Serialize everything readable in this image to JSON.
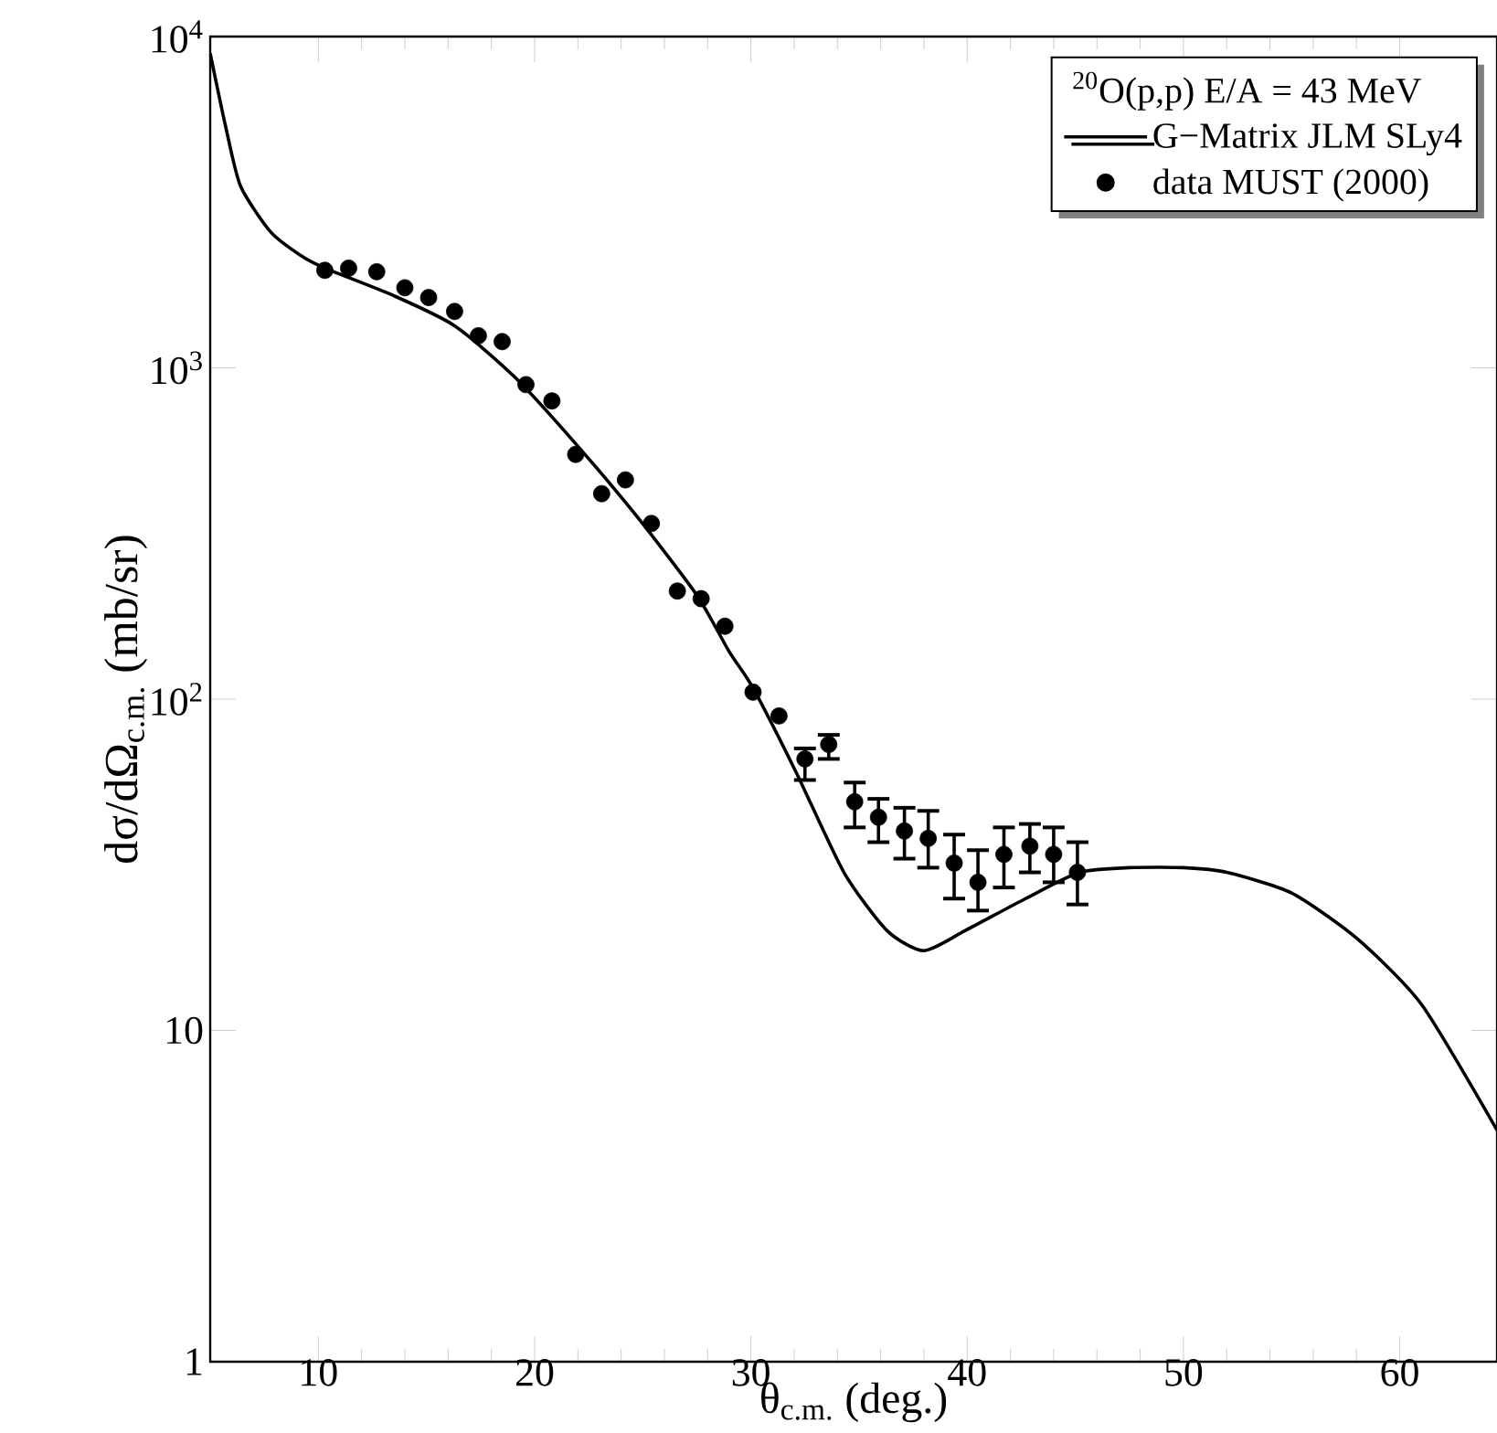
{
  "chart_data": {
    "type": "line",
    "legend_title": "$^{20}$O(p,p)  E/A = 43 MeV",
    "xlabel": "θ$_{c.m.}$ (deg.)",
    "ylabel": "dσ/dΩ$_{c.m.}$ (mb/sr)",
    "log": "y",
    "legend": "top right",
    "xlim": [
      5,
      64.5
    ],
    "ylim": [
      1,
      10000
    ],
    "xticks": [
      10,
      20,
      30,
      40,
      50,
      60
    ],
    "yticks": [
      1,
      10,
      {
        "value": 100,
        "label": "10$^{2}$"
      },
      {
        "value": 1000,
        "label": "10$^{3}$"
      },
      {
        "value": 10000,
        "label": "10$^{4}$"
      }
    ],
    "series": [
      {
        "name": "G−Matrix JLM SLy4",
        "type": "line",
        "color": "#000000",
        "marker": "none",
        "line_style": "solid",
        "x": [
          5,
          5.7,
          6.4,
          7.8,
          9.2,
          10.3,
          13.5,
          16.3,
          19.1,
          21.9,
          24.7,
          27.5,
          29,
          30.1,
          32.1,
          34.3,
          36.3,
          38,
          39.9,
          42.7,
          45.2,
          47.5,
          50,
          52,
          55,
          58,
          61,
          64.5
        ],
        "values": [
          8900,
          5400,
          3540,
          2570,
          2180,
          2000,
          1650,
          1340,
          935,
          590,
          358,
          206,
          139,
          108,
          60,
          30,
          20,
          17.4,
          20,
          25,
          30,
          31,
          31,
          30,
          26,
          19,
          12,
          5
        ]
      },
      {
        "name": "data MUST (2000)",
        "type": "scatter",
        "color": "#000000",
        "marker": "circle",
        "x": [
          10.3,
          11.4,
          12.7,
          14.0,
          15.1,
          16.3,
          17.4,
          18.5,
          19.6,
          20.8,
          21.9,
          23.1,
          24.2,
          25.4,
          26.6,
          27.7,
          28.8,
          30.1,
          31.3,
          32.5,
          33.6,
          34.8,
          35.9,
          37.1,
          38.2,
          39.4,
          40.5,
          41.7,
          42.9,
          44.0,
          45.1
        ],
        "values": [
          1970,
          2000,
          1950,
          1745,
          1630,
          1480,
          1250,
          1200,
          890,
          795,
          548,
          417,
          459,
          339,
          212,
          201,
          166,
          105,
          89,
          66,
          73,
          49,
          44,
          40,
          38,
          32,
          28,
          34,
          36,
          34,
          30
        ],
        "errors": [
          null,
          null,
          null,
          null,
          null,
          null,
          null,
          null,
          null,
          null,
          null,
          null,
          null,
          null,
          null,
          null,
          null,
          null,
          null,
          [
            57,
            71
          ],
          [
            66,
            78
          ],
          [
            41,
            56
          ],
          [
            37,
            50
          ],
          [
            33,
            47
          ],
          [
            31,
            46
          ],
          [
            25,
            39
          ],
          [
            23,
            35
          ],
          [
            27,
            41
          ],
          [
            30,
            42
          ],
          [
            28,
            41
          ],
          [
            24,
            37
          ]
        ]
      }
    ]
  }
}
